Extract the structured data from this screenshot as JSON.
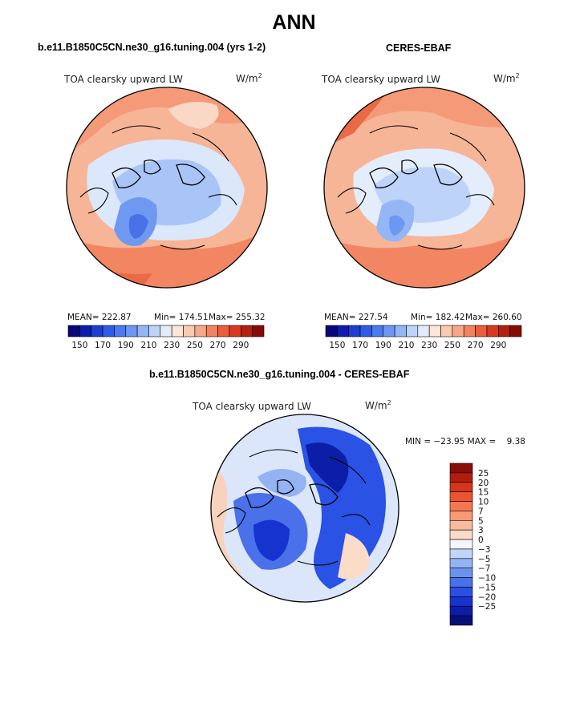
{
  "title": "ANN",
  "panels": [
    {
      "id": "model",
      "subtitle": "b.e11.B1850C5CN.ne30_g16.tuning.004 (yrs 1-2)",
      "label": "TOA clearsky upward LW",
      "units": "W/m",
      "units_sup": "2",
      "mean": "MEAN= 222.87",
      "min": "Min= 174.51",
      "max": "Max= 255.32"
    },
    {
      "id": "obs",
      "subtitle": "CERES-EBAF",
      "label": "TOA clearsky upward LW",
      "units": "W/m",
      "units_sup": "2",
      "mean": "MEAN= 227.54",
      "min": "Min= 182.42",
      "max": "Max= 260.60"
    }
  ],
  "diff": {
    "subtitle": "b.e11.B1850C5CN.ne30_g16.tuning.004 - CERES-EBAF",
    "label": "TOA clearsky upward LW",
    "units": "W/m",
    "units_sup": "2",
    "minmax": "MIN = −23.95 MAX =    9.38"
  },
  "chart_data": [
    {
      "type": "heatmap",
      "title": "TOA clearsky upward LW",
      "projection": "north polar stereographic",
      "colorbar_ticks": [
        "150",
        "170",
        "190",
        "210",
        "230",
        "250",
        "270",
        "290"
      ],
      "colorbar_colors": [
        "#08067a",
        "#0e1dae",
        "#1a3fd1",
        "#2f5ce6",
        "#4a7bf0",
        "#6c98f3",
        "#94b6f5",
        "#bdd3f7",
        "#e2ecfa",
        "#fde6d6",
        "#fbcbb0",
        "#f8a887",
        "#f3835f",
        "#ec5e3a",
        "#d83a1f",
        "#b41f0f",
        "#860b05"
      ],
      "mean": 222.87,
      "min": 174.51,
      "max": 255.32
    },
    {
      "type": "heatmap",
      "title": "TOA clearsky upward LW",
      "projection": "north polar stereographic",
      "colorbar_ticks": [
        "150",
        "170",
        "190",
        "210",
        "230",
        "250",
        "270",
        "290"
      ],
      "colorbar_colors": [
        "#08067a",
        "#0e1dae",
        "#1a3fd1",
        "#2f5ce6",
        "#4a7bf0",
        "#6c98f3",
        "#94b6f5",
        "#bdd3f7",
        "#e2ecfa",
        "#fde6d6",
        "#fbcbb0",
        "#f8a887",
        "#f3835f",
        "#ec5e3a",
        "#d83a1f",
        "#b41f0f",
        "#860b05"
      ],
      "mean": 227.54,
      "min": 182.42,
      "max": 260.6
    },
    {
      "type": "heatmap",
      "title": "TOA clearsky upward LW",
      "projection": "north polar stereographic",
      "colorbar_ticks": [
        "25",
        "20",
        "15",
        "10",
        "7",
        "5",
        "3",
        "0",
        "−3",
        "−5",
        "−7",
        "−10",
        "−15",
        "−20",
        "−25"
      ],
      "colorbar_colors": [
        "#8c0c06",
        "#b31d0e",
        "#d4351b",
        "#ec5430",
        "#f5774f",
        "#f89a74",
        "#f8bb9c",
        "#fbdcc9",
        "#f3f6fd",
        "#c3d5f6",
        "#94b3f2",
        "#6d92ee",
        "#4a70ea",
        "#2c4fe3",
        "#1633cf",
        "#0c1ea7",
        "#071078"
      ],
      "min": -23.95,
      "max": 9.38
    }
  ]
}
